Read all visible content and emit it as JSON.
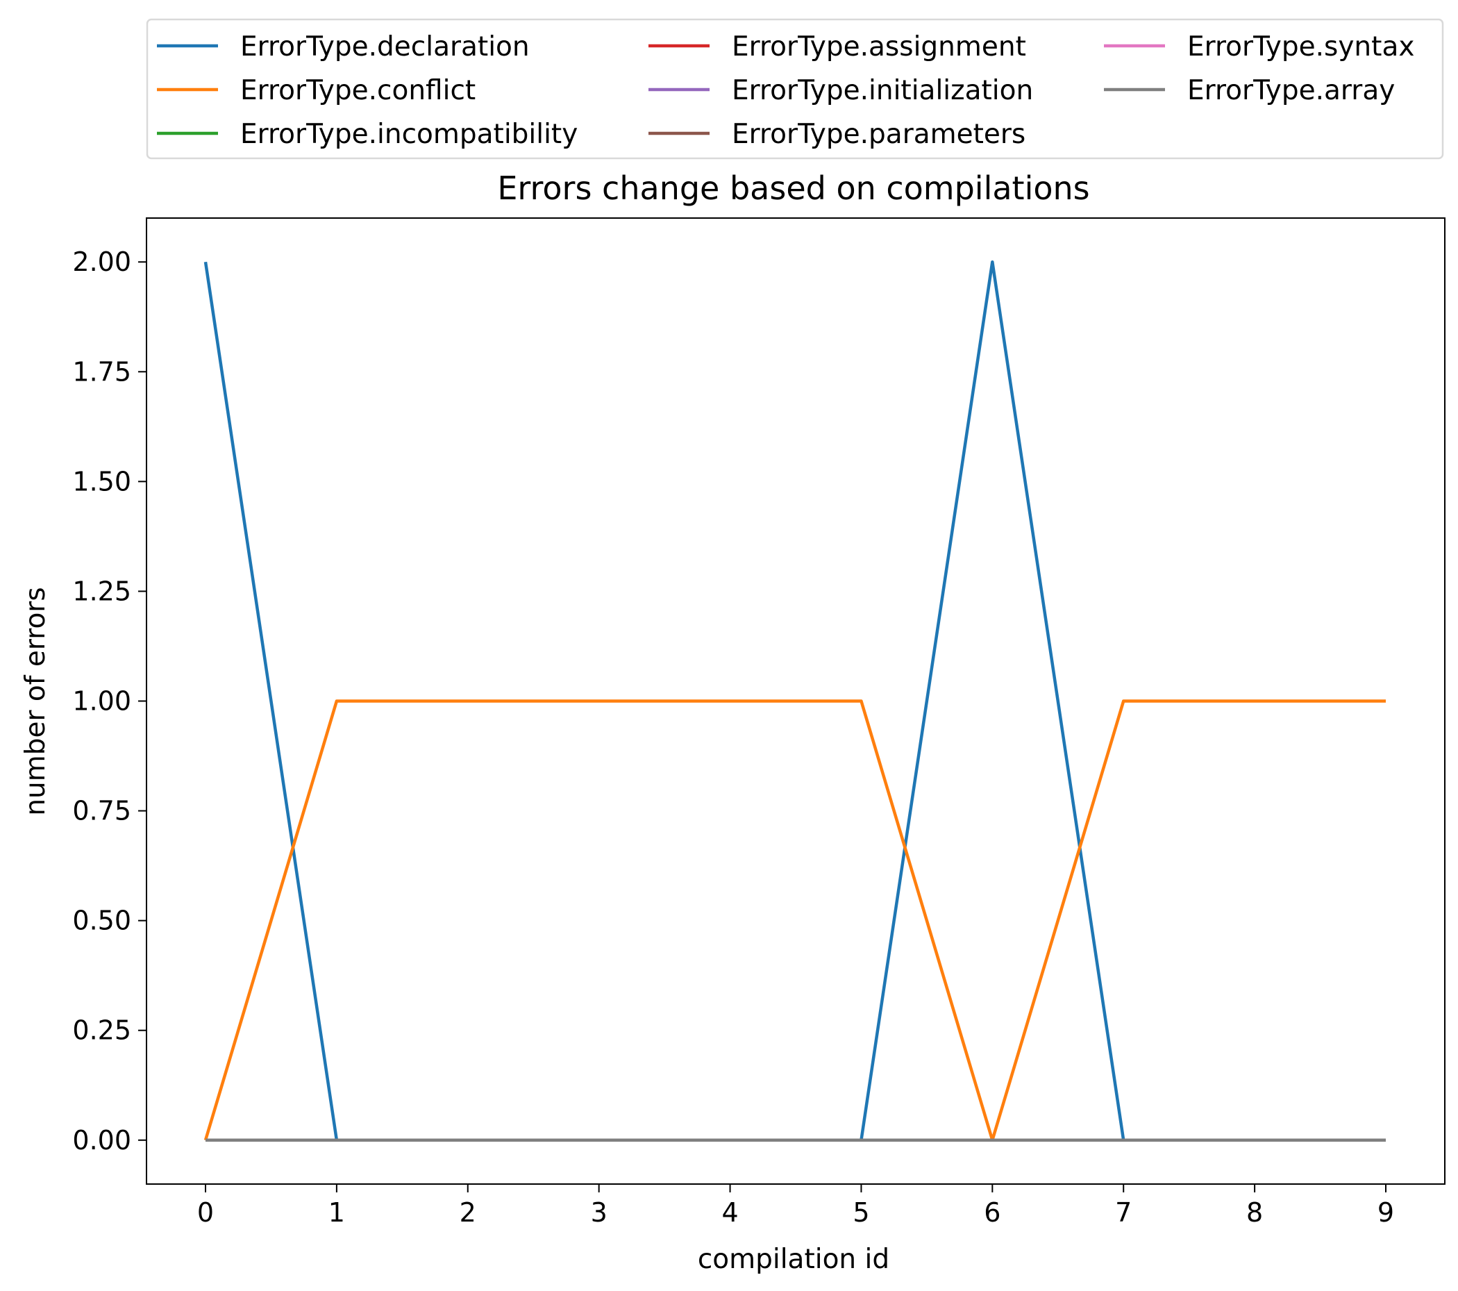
{
  "chart_data": {
    "type": "line",
    "title": "Errors change based on compilations",
    "xlabel": "compilation id",
    "ylabel": "number of errors",
    "x": [
      0,
      1,
      2,
      3,
      4,
      5,
      6,
      7,
      8,
      9
    ],
    "x_tick_labels": [
      "0",
      "1",
      "2",
      "3",
      "4",
      "5",
      "6",
      "7",
      "8",
      "9"
    ],
    "y_tick_labels": [
      "0.00",
      "0.25",
      "0.50",
      "0.75",
      "1.00",
      "1.25",
      "1.50",
      "1.75",
      "2.00"
    ],
    "y_ticks": [
      0,
      0.25,
      0.5,
      0.75,
      1.0,
      1.25,
      1.5,
      1.75,
      2.0
    ],
    "xlim": [
      -0.45,
      9.45
    ],
    "ylim": [
      -0.1,
      2.1
    ],
    "grid": false,
    "legend_position": "top",
    "series": [
      {
        "name": "ErrorType.declaration",
        "color": "#1f77b4",
        "values": [
          2,
          0,
          0,
          0,
          0,
          0,
          2,
          0,
          0,
          0
        ]
      },
      {
        "name": "ErrorType.conflict",
        "color": "#ff7f0e",
        "values": [
          0,
          1,
          1,
          1,
          1,
          1,
          0,
          1,
          1,
          1
        ]
      },
      {
        "name": "ErrorType.incompatibility",
        "color": "#2ca02c",
        "values": [
          0,
          0,
          0,
          0,
          0,
          0,
          0,
          0,
          0,
          0
        ]
      },
      {
        "name": "ErrorType.assignment",
        "color": "#d62728",
        "values": [
          0,
          0,
          0,
          0,
          0,
          0,
          0,
          0,
          0,
          0
        ]
      },
      {
        "name": "ErrorType.initialization",
        "color": "#9467bd",
        "values": [
          0,
          0,
          0,
          0,
          0,
          0,
          0,
          0,
          0,
          0
        ]
      },
      {
        "name": "ErrorType.parameters",
        "color": "#8c564b",
        "values": [
          0,
          0,
          0,
          0,
          0,
          0,
          0,
          0,
          0,
          0
        ]
      },
      {
        "name": "ErrorType.syntax",
        "color": "#e377c2",
        "values": [
          0,
          0,
          0,
          0,
          0,
          0,
          0,
          0,
          0,
          0
        ]
      },
      {
        "name": "ErrorType.array",
        "color": "#7f7f7f",
        "values": [
          0,
          0,
          0,
          0,
          0,
          0,
          0,
          0,
          0,
          0
        ]
      }
    ]
  }
}
